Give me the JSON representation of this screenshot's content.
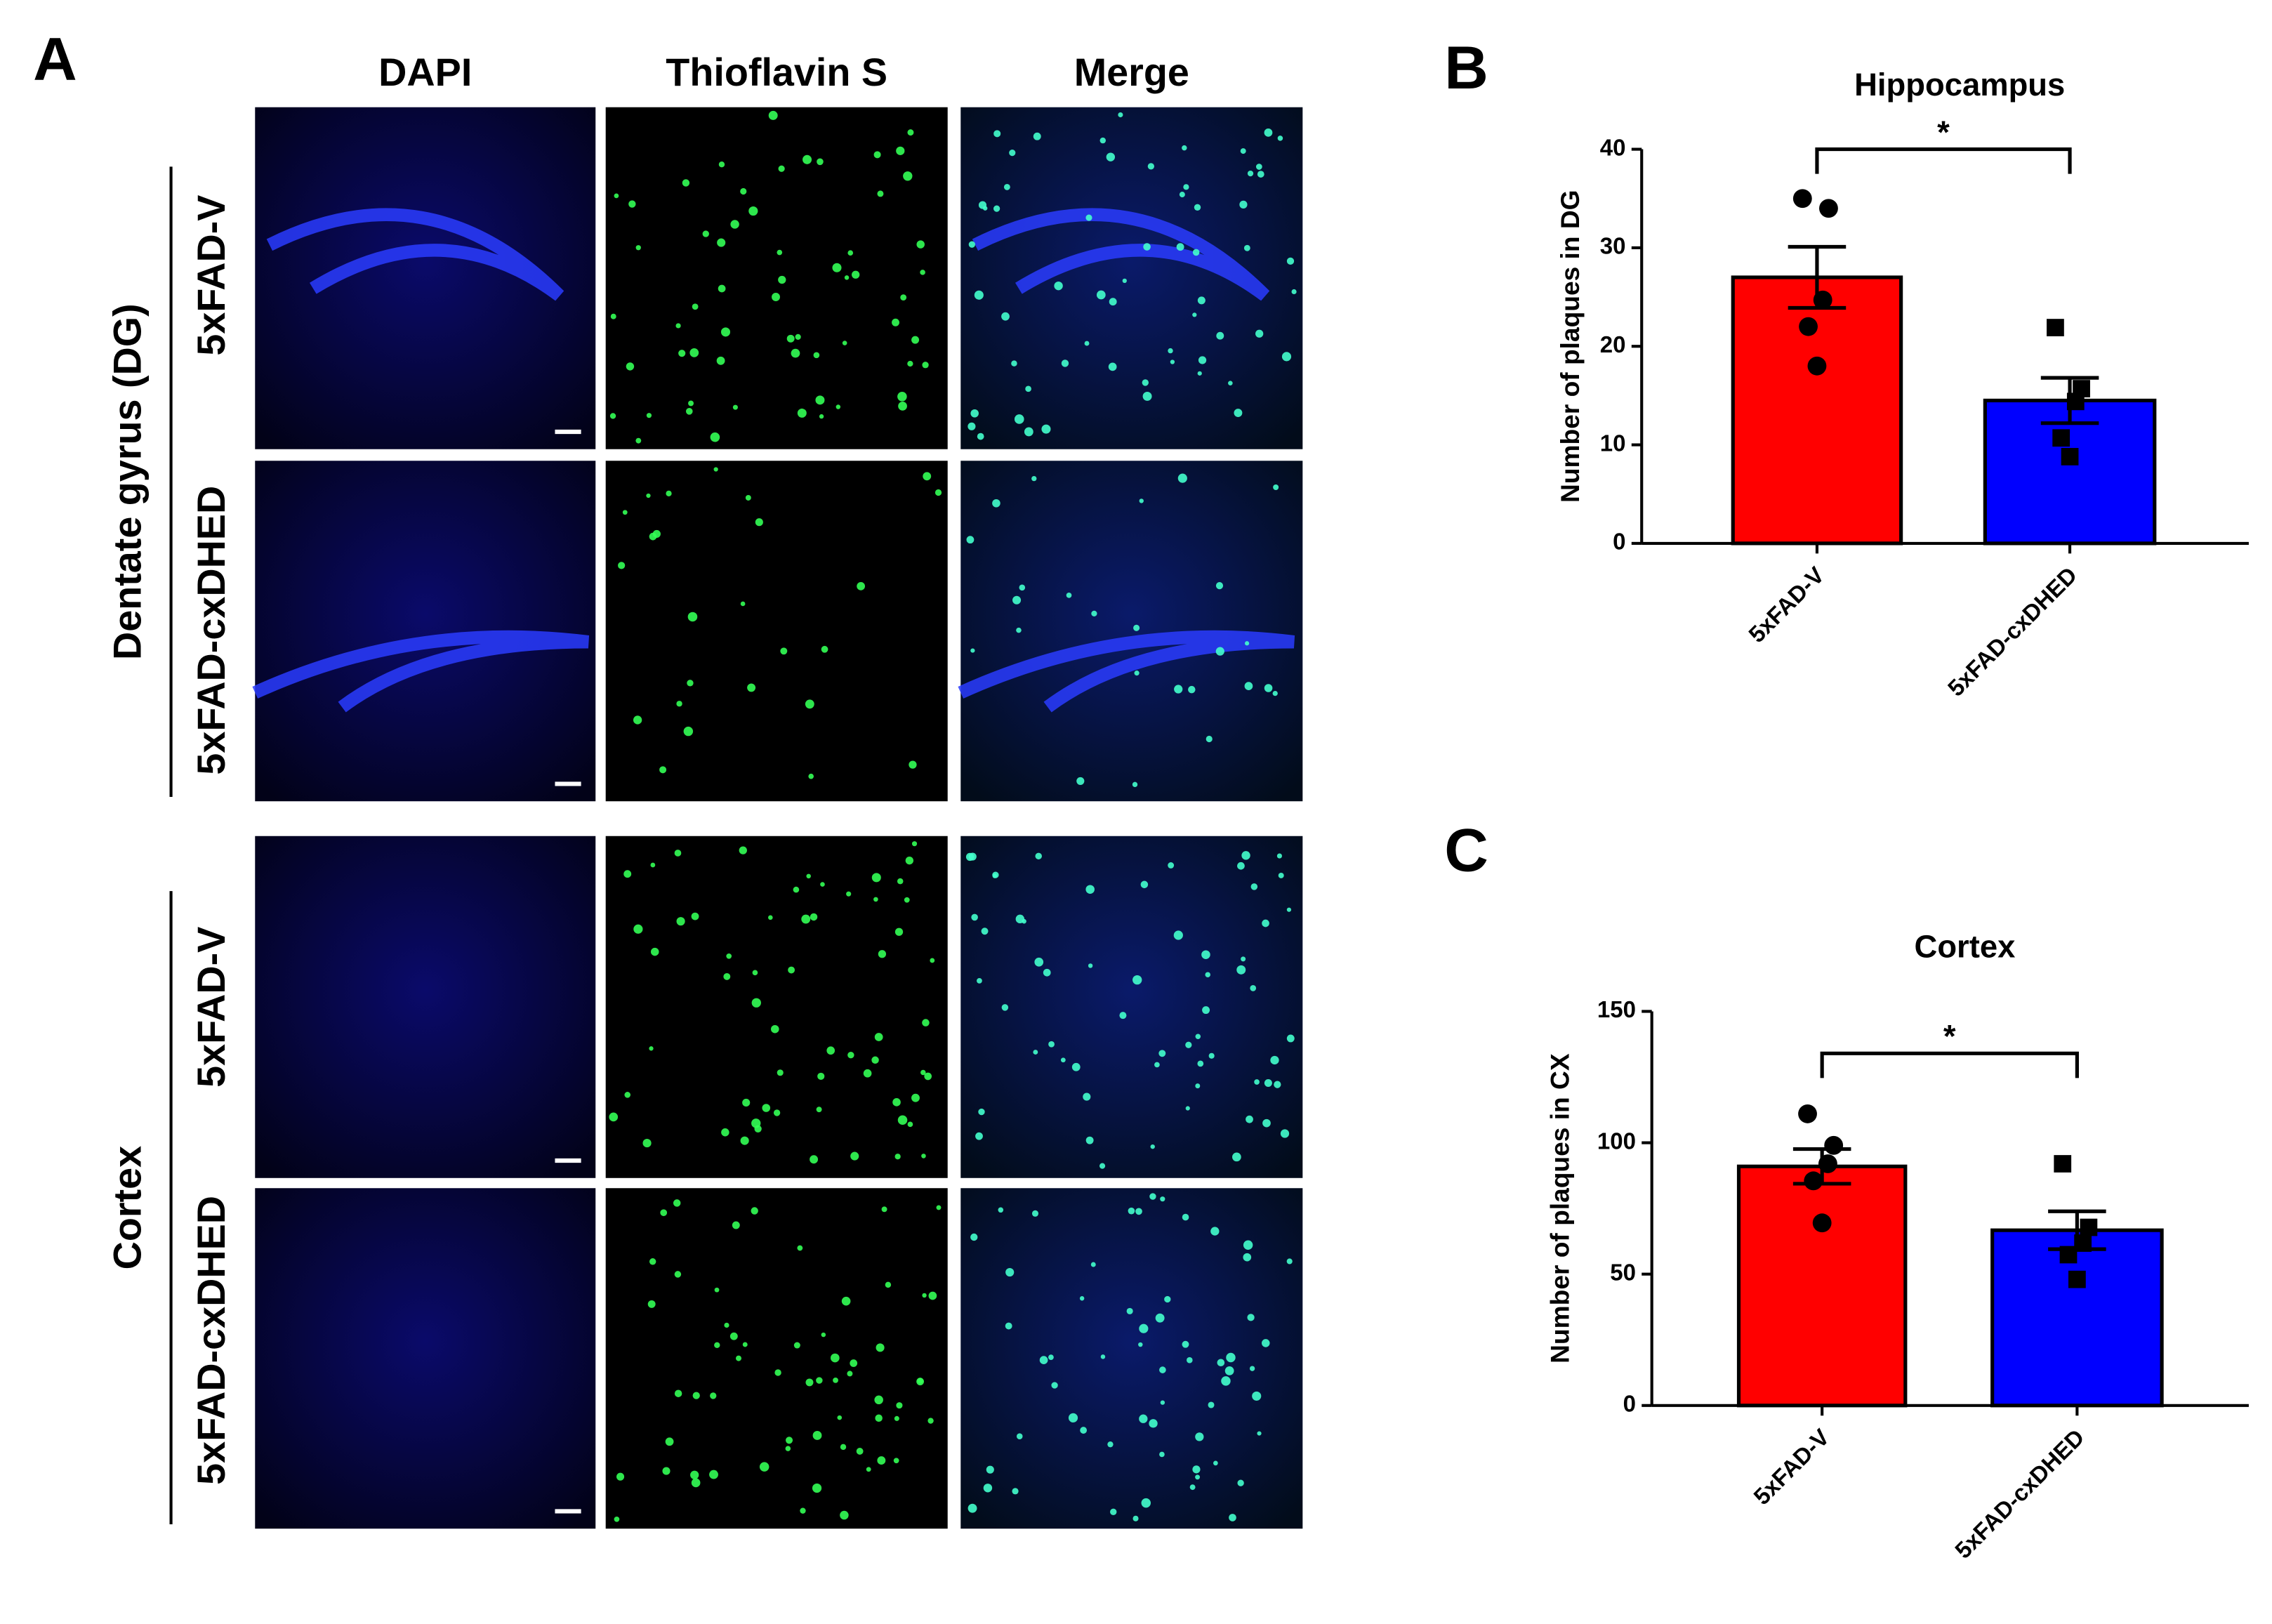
{
  "panels": {
    "a": {
      "letter": "A",
      "columns": [
        "DAPI",
        "Thioflavin S",
        "Merge"
      ],
      "groups": [
        {
          "label": "Dentate gyrus (DG)",
          "rows": [
            "5xFAD-V",
            "5xFAD-cxDHED"
          ]
        },
        {
          "label": "Cortex",
          "rows": [
            "5xFAD-V",
            "5xFAD-cxDHED"
          ]
        }
      ]
    },
    "b": {
      "letter": "B"
    },
    "c": {
      "letter": "C"
    }
  },
  "chart_data": [
    {
      "type": "bar",
      "title": "Hippocampus",
      "y_label": "Number of plaques in DG",
      "categories": [
        "5xFAD-V",
        "5xFAD-cxDHED"
      ],
      "values": [
        27,
        14.5
      ],
      "errors": [
        3.1,
        2.3
      ],
      "colors": [
        "#ff0000",
        "#0000ff"
      ],
      "markers": [
        "circle",
        "square"
      ],
      "points": [
        [
          35,
          34,
          24.7,
          22,
          18
        ],
        [
          21.9,
          15.7,
          14.4,
          10.7,
          8.8
        ]
      ],
      "ylim": [
        0,
        40
      ],
      "yticks": [
        0,
        10,
        20,
        30,
        40
      ],
      "significance": "*"
    },
    {
      "type": "bar",
      "title": "Cortex",
      "y_label": "Number of plaques in CX",
      "categories": [
        "5xFAD-V",
        "5xFAD-cxDHED"
      ],
      "values": [
        91,
        66.7
      ],
      "errors": [
        6.6,
        7.2
      ],
      "colors": [
        "#ff0000",
        "#0000ff"
      ],
      "markers": [
        "circle",
        "square"
      ],
      "points": [
        [
          111,
          99,
          92,
          85.5,
          69.5
        ],
        [
          92,
          67.8,
          61.8,
          57.4,
          48
        ]
      ],
      "ylim": [
        0,
        150
      ],
      "yticks": [
        0,
        50,
        100,
        150
      ],
      "significance": "*"
    }
  ]
}
